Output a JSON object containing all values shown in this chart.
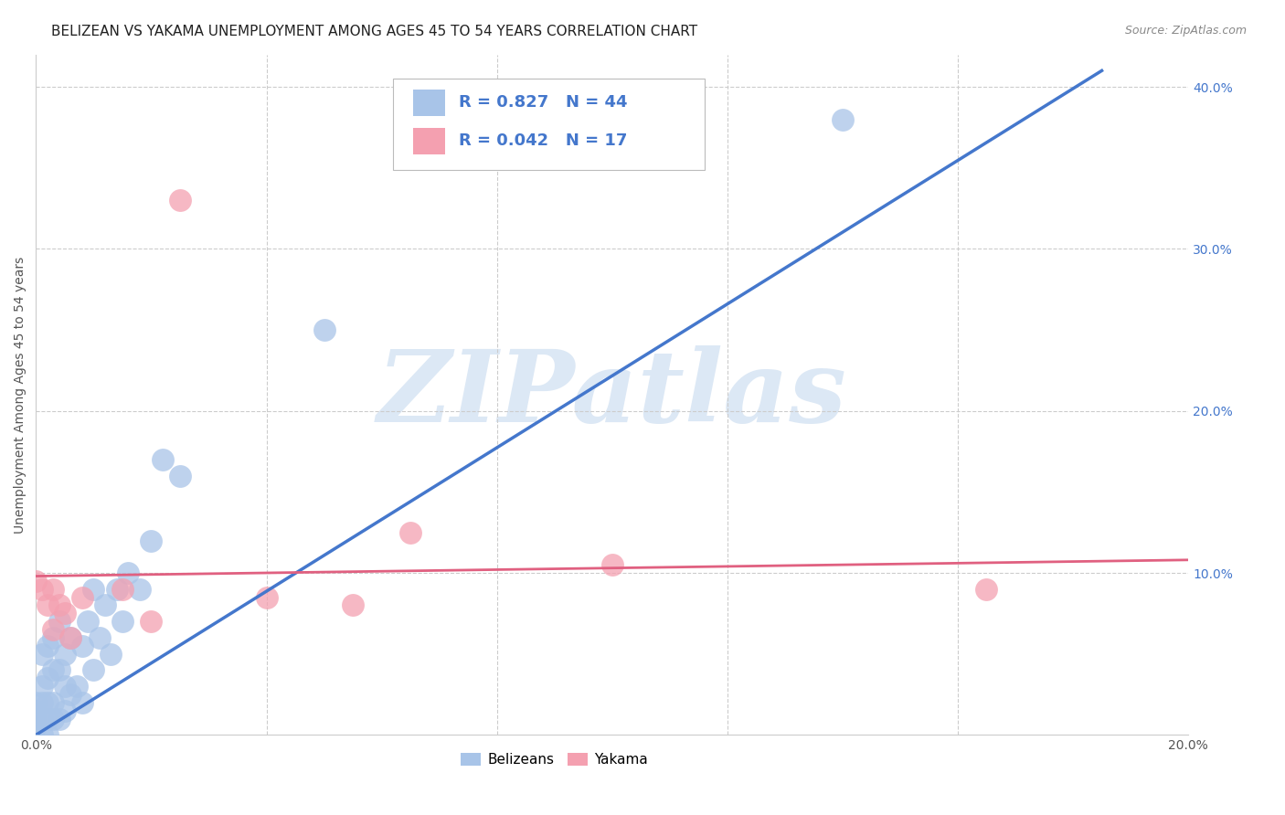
{
  "title": "BELIZEAN VS YAKAMA UNEMPLOYMENT AMONG AGES 45 TO 54 YEARS CORRELATION CHART",
  "source": "Source: ZipAtlas.com",
  "ylabel": "Unemployment Among Ages 45 to 54 years",
  "xlim": [
    0.0,
    0.2
  ],
  "ylim": [
    0.0,
    0.42
  ],
  "belizean_R": 0.827,
  "belizean_N": 44,
  "yakama_R": 0.042,
  "yakama_N": 17,
  "belizean_color": "#a8c4e8",
  "yakama_color": "#f4a0b0",
  "belizean_line_color": "#4477cc",
  "yakama_line_color": "#e06080",
  "background_color": "#ffffff",
  "watermark_color": "#dce8f5",
  "bel_x": [
    0.0,
    0.0,
    0.0,
    0.0,
    0.001,
    0.001,
    0.001,
    0.001,
    0.001,
    0.002,
    0.002,
    0.002,
    0.002,
    0.002,
    0.003,
    0.003,
    0.003,
    0.003,
    0.004,
    0.004,
    0.004,
    0.005,
    0.005,
    0.005,
    0.006,
    0.006,
    0.007,
    0.008,
    0.008,
    0.009,
    0.01,
    0.01,
    0.011,
    0.012,
    0.013,
    0.014,
    0.015,
    0.016,
    0.018,
    0.02,
    0.022,
    0.025,
    0.05,
    0.14
  ],
  "bel_y": [
    0.005,
    0.01,
    0.015,
    0.02,
    0.0,
    0.01,
    0.02,
    0.03,
    0.05,
    0.0,
    0.01,
    0.02,
    0.035,
    0.055,
    0.01,
    0.02,
    0.04,
    0.06,
    0.01,
    0.04,
    0.07,
    0.015,
    0.03,
    0.05,
    0.025,
    0.06,
    0.03,
    0.02,
    0.055,
    0.07,
    0.04,
    0.09,
    0.06,
    0.08,
    0.05,
    0.09,
    0.07,
    0.1,
    0.09,
    0.12,
    0.17,
    0.16,
    0.25,
    0.38
  ],
  "yak_x": [
    0.0,
    0.001,
    0.002,
    0.003,
    0.003,
    0.004,
    0.005,
    0.006,
    0.008,
    0.015,
    0.025,
    0.04,
    0.055,
    0.065,
    0.1,
    0.165,
    0.02
  ],
  "yak_y": [
    0.095,
    0.09,
    0.08,
    0.065,
    0.09,
    0.08,
    0.075,
    0.06,
    0.085,
    0.09,
    0.33,
    0.085,
    0.08,
    0.125,
    0.105,
    0.09,
    0.07
  ],
  "bel_line_x0": 0.0,
  "bel_line_x1": 0.185,
  "bel_line_y0": 0.0,
  "bel_line_y1": 0.41,
  "yak_line_x0": 0.0,
  "yak_line_x1": 0.2,
  "yak_line_y0": 0.098,
  "yak_line_y1": 0.108,
  "title_fontsize": 11,
  "label_fontsize": 10,
  "tick_fontsize": 10
}
